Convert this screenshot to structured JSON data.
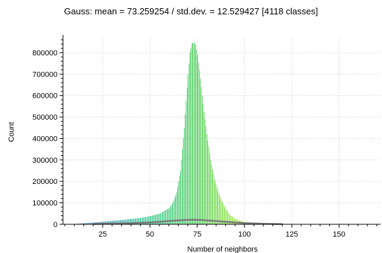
{
  "chart_data": {
    "type": "bar",
    "title": "Gauss: mean = 73.259254 / std.dev. = 12.529427 [4118 classes]",
    "xlabel": "Number of neighbors",
    "ylabel": "Count",
    "xlim": [
      4,
      172
    ],
    "ylim": [
      0,
      870000
    ],
    "x_ticks": [
      25,
      50,
      75,
      100,
      125,
      150
    ],
    "y_ticks": [
      0,
      100000,
      200000,
      300000,
      400000,
      500000,
      600000,
      700000,
      800000
    ],
    "grid": true,
    "gradient_colors": [
      "#1f5fbf",
      "#22c78a",
      "#3ec84a",
      "#a8f020",
      "#f4fb3a"
    ],
    "histogram_series": {
      "x": [
        10,
        15,
        20,
        25,
        30,
        35,
        40,
        45,
        50,
        55,
        60,
        62,
        64,
        66,
        68,
        70,
        71,
        72,
        73,
        74,
        75,
        76,
        77,
        78,
        80,
        82,
        84,
        86,
        88,
        90,
        92,
        95,
        100,
        105,
        110,
        115,
        120,
        130
      ],
      "y": [
        1000,
        5000,
        8000,
        12000,
        16000,
        20000,
        25000,
        30000,
        38000,
        50000,
        75000,
        100000,
        150000,
        250000,
        450000,
        700000,
        800000,
        840000,
        850000,
        835000,
        790000,
        720000,
        640000,
        560000,
        420000,
        300000,
        210000,
        150000,
        105000,
        72000,
        45000,
        25000,
        10000,
        5000,
        2000,
        1000,
        500,
        0
      ]
    },
    "gauss_series": {
      "x": [
        20,
        30,
        40,
        50,
        55,
        60,
        65,
        70,
        73,
        76,
        80,
        85,
        90,
        95,
        100,
        110,
        120
      ],
      "y": [
        1500,
        3000,
        5000,
        9000,
        11500,
        15000,
        18500,
        20500,
        21000,
        20500,
        18500,
        15000,
        11500,
        8500,
        5500,
        2500,
        800
      ]
    }
  }
}
